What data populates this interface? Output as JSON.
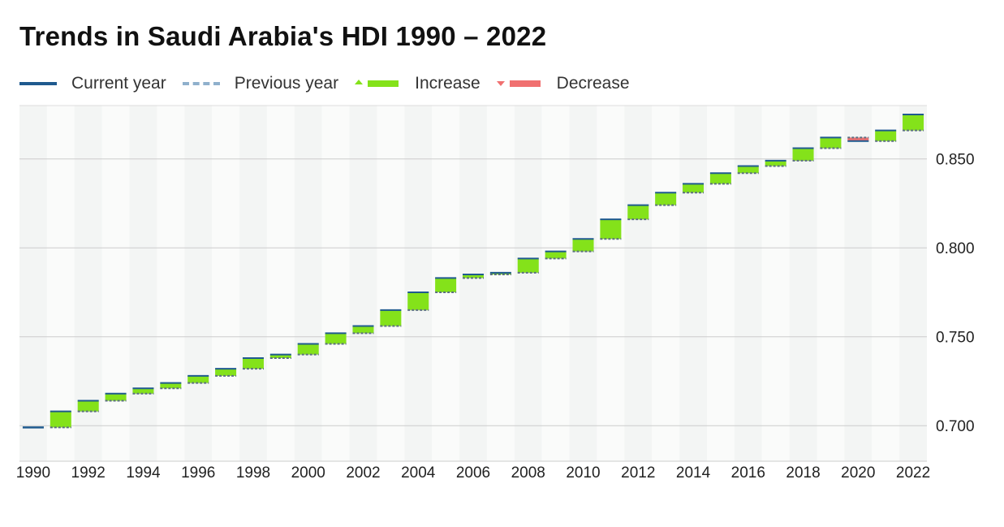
{
  "chart_data": {
    "type": "bar",
    "title": "Trends in Saudi Arabia's HDI 1990 – 2022",
    "legend": {
      "placement": "top-left",
      "entries": [
        {
          "label": "Current year",
          "color": "#1f5a8e"
        },
        {
          "label": "Previous year",
          "color": "#8fb0cc"
        },
        {
          "label": "Increase",
          "color": "#84e21a"
        },
        {
          "label": "Decrease",
          "color": "#f07070"
        }
      ]
    },
    "x": [
      1990,
      1991,
      1992,
      1993,
      1994,
      1995,
      1996,
      1997,
      1998,
      1999,
      2000,
      2001,
      2002,
      2003,
      2004,
      2005,
      2006,
      2007,
      2008,
      2009,
      2010,
      2011,
      2012,
      2013,
      2014,
      2015,
      2016,
      2017,
      2018,
      2019,
      2020,
      2021,
      2022
    ],
    "values": [
      0.699,
      0.708,
      0.714,
      0.718,
      0.721,
      0.724,
      0.728,
      0.732,
      0.738,
      0.74,
      0.746,
      0.752,
      0.756,
      0.765,
      0.775,
      0.783,
      0.785,
      0.786,
      0.794,
      0.798,
      0.805,
      0.816,
      0.824,
      0.831,
      0.836,
      0.842,
      0.846,
      0.849,
      0.856,
      0.862,
      0.86,
      0.866,
      0.875
    ],
    "x_ticks": [
      1990,
      1992,
      1994,
      1996,
      1998,
      2000,
      2002,
      2004,
      2006,
      2008,
      2010,
      2012,
      2014,
      2016,
      2018,
      2020,
      2022
    ],
    "y_ticks": [
      "0.700",
      "0.750",
      "0.800",
      "0.850"
    ],
    "ylim": [
      0.68,
      0.88
    ],
    "y_axis_side": "right",
    "grid": true,
    "colors": {
      "current": "#1f5a8e",
      "previous": "#8fb0cc",
      "increase": "#84e21a",
      "decrease": "#f07070",
      "band_dark": "#f3f5f4",
      "band_light": "#fafbfa",
      "grid": "#cccccc"
    }
  }
}
